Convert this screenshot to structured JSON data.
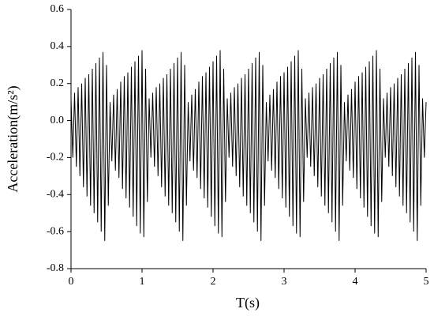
{
  "chart_data": {
    "type": "line",
    "xlabel": "T(s)",
    "ylabel": "Acceleration(m/s²)",
    "xlim": [
      0,
      5
    ],
    "xticks": [
      0,
      1,
      2,
      3,
      4,
      5
    ],
    "ylim": [
      -0.8,
      0.6
    ],
    "yticks": [
      {
        "value": -0.8,
        "label": "-0.8"
      },
      {
        "value": -0.6,
        "label": "-0.6"
      },
      {
        "value": -0.4,
        "label": "-0.4"
      },
      {
        "value": -0.2,
        "label": "-0.2"
      },
      {
        "value": 0,
        "label": "0.0"
      },
      {
        "value": 0.2,
        "label": "0.2"
      },
      {
        "value": 0.4,
        "label": "0.4"
      },
      {
        "value": 0.6,
        "label": "0.6"
      }
    ],
    "series": [
      {
        "color": "#000000",
        "x": [
          0,
          0.025,
          0.05,
          0.075,
          0.1,
          0.125,
          0.15,
          0.175,
          0.2,
          0.225,
          0.25,
          0.275,
          0.3,
          0.325,
          0.35,
          0.375,
          0.4,
          0.425,
          0.45,
          0.475,
          0.5,
          0.525,
          0.55,
          0.575,
          0.6,
          0.625,
          0.65,
          0.675,
          0.7,
          0.725,
          0.75,
          0.775,
          0.8,
          0.825,
          0.85,
          0.875,
          0.9,
          0.925,
          0.95,
          0.975,
          1,
          1.025,
          1.05,
          1.075,
          1.1,
          1.125,
          1.15,
          1.175,
          1.2,
          1.225,
          1.25,
          1.275,
          1.3,
          1.325,
          1.35,
          1.375,
          1.4,
          1.425,
          1.45,
          1.475,
          1.5,
          1.525,
          1.55,
          1.575,
          1.6,
          1.625,
          1.65,
          1.675,
          1.7,
          1.725,
          1.75,
          1.775,
          1.8,
          1.825,
          1.85,
          1.875,
          1.9,
          1.925,
          1.95,
          1.975,
          2,
          2.025,
          2.05,
          2.075,
          2.1,
          2.125,
          2.15,
          2.175,
          2.2,
          2.225,
          2.25,
          2.275,
          2.3,
          2.325,
          2.35,
          2.375,
          2.4,
          2.425,
          2.45,
          2.475,
          2.5,
          2.525,
          2.55,
          2.575,
          2.6,
          2.625,
          2.65,
          2.675,
          2.7,
          2.725,
          2.75,
          2.775,
          2.8,
          2.825,
          2.85,
          2.875,
          2.9,
          2.925,
          2.95,
          2.975,
          3,
          3.025,
          3.05,
          3.075,
          3.1,
          3.125,
          3.15,
          3.175,
          3.2,
          3.225,
          3.25,
          3.275,
          3.3,
          3.325,
          3.35,
          3.375,
          3.4,
          3.425,
          3.45,
          3.475,
          3.5,
          3.525,
          3.55,
          3.575,
          3.6,
          3.625,
          3.65,
          3.675,
          3.7,
          3.725,
          3.75,
          3.775,
          3.8,
          3.825,
          3.85,
          3.875,
          3.9,
          3.925,
          3.95,
          3.975,
          4,
          4.025,
          4.05,
          4.075,
          4.1,
          4.125,
          4.15,
          4.175,
          4.2,
          4.225,
          4.25,
          4.275,
          4.3,
          4.325,
          4.35,
          4.375,
          4.4,
          4.425,
          4.45,
          4.475,
          4.5,
          4.525,
          4.55,
          4.575,
          4.6,
          4.625,
          4.65,
          4.675,
          4.7,
          4.725,
          4.75,
          4.775,
          4.8,
          4.825,
          4.85,
          4.875,
          4.9,
          4.925,
          4.95,
          4.975,
          5
        ],
        "values": [
          0.12,
          -0.2,
          0.15,
          -0.25,
          0.18,
          -0.3,
          0.2,
          -0.36,
          0.23,
          -0.41,
          0.25,
          -0.46,
          0.28,
          -0.5,
          0.31,
          -0.55,
          0.34,
          -0.6,
          0.37,
          -0.65,
          0.3,
          -0.46,
          0.1,
          -0.22,
          0.14,
          -0.27,
          0.17,
          -0.31,
          0.21,
          -0.37,
          0.24,
          -0.42,
          0.26,
          -0.47,
          0.29,
          -0.52,
          0.32,
          -0.57,
          0.35,
          -0.61,
          0.38,
          -0.63,
          0.28,
          -0.44,
          0.12,
          -0.2,
          0.15,
          -0.25,
          0.18,
          -0.3,
          0.2,
          -0.36,
          0.23,
          -0.41,
          0.25,
          -0.46,
          0.28,
          -0.5,
          0.31,
          -0.55,
          0.34,
          -0.6,
          0.37,
          -0.65,
          0.3,
          -0.46,
          0.1,
          -0.22,
          0.14,
          -0.27,
          0.17,
          -0.31,
          0.21,
          -0.37,
          0.24,
          -0.42,
          0.26,
          -0.47,
          0.29,
          -0.52,
          0.32,
          -0.57,
          0.35,
          -0.61,
          0.38,
          -0.63,
          0.28,
          -0.44,
          0.12,
          -0.2,
          0.15,
          -0.25,
          0.18,
          -0.3,
          0.2,
          -0.36,
          0.23,
          -0.41,
          0.25,
          -0.46,
          0.28,
          -0.5,
          0.31,
          -0.55,
          0.34,
          -0.6,
          0.37,
          -0.65,
          0.3,
          -0.46,
          0.1,
          -0.22,
          0.14,
          -0.27,
          0.17,
          -0.31,
          0.21,
          -0.37,
          0.24,
          -0.42,
          0.26,
          -0.47,
          0.29,
          -0.52,
          0.32,
          -0.57,
          0.35,
          -0.61,
          0.38,
          -0.63,
          0.28,
          -0.44,
          0.12,
          -0.2,
          0.15,
          -0.25,
          0.18,
          -0.3,
          0.2,
          -0.36,
          0.23,
          -0.41,
          0.25,
          -0.46,
          0.28,
          -0.5,
          0.31,
          -0.55,
          0.34,
          -0.6,
          0.37,
          -0.65,
          0.3,
          -0.46,
          0.1,
          -0.22,
          0.14,
          -0.27,
          0.17,
          -0.31,
          0.21,
          -0.37,
          0.24,
          -0.42,
          0.26,
          -0.47,
          0.29,
          -0.52,
          0.32,
          -0.57,
          0.35,
          -0.61,
          0.38,
          -0.63,
          0.28,
          -0.44,
          0.12,
          -0.2,
          0.15,
          -0.25,
          0.18,
          -0.3,
          0.2,
          -0.36,
          0.23,
          -0.41,
          0.25,
          -0.46,
          0.28,
          -0.5,
          0.31,
          -0.55,
          0.34,
          -0.6,
          0.37,
          -0.65,
          0.3,
          -0.46,
          0.12,
          -0.2,
          0.1
        ]
      }
    ]
  }
}
